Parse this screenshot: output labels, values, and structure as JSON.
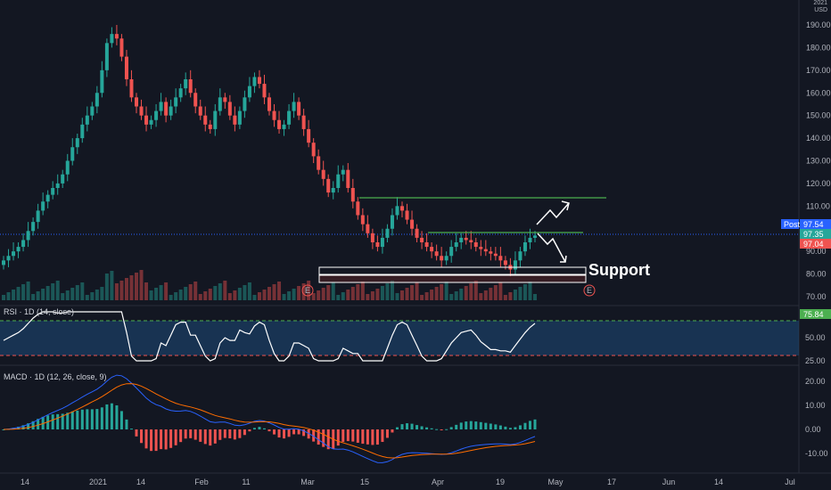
{
  "currency": {
    "line1": "2021",
    "line2": "USD"
  },
  "price_axis": {
    "ticks": [
      "190.00",
      "180.00",
      "170.00",
      "160.00",
      "150.00",
      "140.00",
      "130.00",
      "120.00",
      "110.00",
      "100.00",
      "90.00",
      "80.00",
      "70.00"
    ]
  },
  "price_tags": {
    "post_label": "Post",
    "post_value": "97.54",
    "last_value": "97.35",
    "prev_value": "97.04",
    "post_color": "#2962ff",
    "last_color": "#26a69a",
    "prev_color": "#ef5350"
  },
  "annotation": {
    "support": "Support",
    "earnings_marker": "E"
  },
  "rsi": {
    "legend": "RSI · 1D (14, close)",
    "value": "75.84",
    "ticks": [
      "50.00",
      "25.00"
    ]
  },
  "macd": {
    "legend": "MACD · 1D (12, 26, close, 9)",
    "ticks": [
      "20.00",
      "10.00",
      "0.00",
      "-10.00"
    ]
  },
  "time_axis": {
    "labels": [
      "14",
      "2021",
      "14",
      "Feb",
      "11",
      "Mar",
      "15",
      "Apr",
      "19",
      "May",
      "17",
      "Jun",
      "14",
      "Jul"
    ]
  },
  "colors": {
    "background": "#131722",
    "up": "#26a69a",
    "down": "#ef5350",
    "rsi_band": "#1e4a7a",
    "resistance": "#4caf50"
  },
  "chart_data": {
    "type": "candlestick",
    "price_range": [
      66,
      196
    ],
    "closes": [
      86,
      88,
      90,
      92,
      95,
      99,
      103,
      108,
      112,
      115,
      118,
      120,
      124,
      130,
      136,
      140,
      146,
      150,
      154,
      160,
      170,
      182,
      186,
      184,
      176,
      166,
      158,
      154,
      150,
      146,
      148,
      152,
      156,
      150,
      154,
      158,
      162,
      166,
      160,
      154,
      150,
      146,
      144,
      152,
      158,
      156,
      150,
      146,
      152,
      158,
      163,
      167,
      164,
      158,
      152,
      148,
      144,
      146,
      152,
      156,
      150,
      144,
      138,
      132,
      126,
      122,
      116,
      118,
      124,
      126,
      118,
      112,
      106,
      102,
      98,
      94,
      92,
      96,
      100,
      106,
      110,
      108,
      104,
      100,
      96,
      94,
      92,
      90,
      88,
      86,
      88,
      92,
      94,
      96,
      95,
      94,
      92,
      91,
      90,
      89,
      88,
      86,
      84,
      82,
      86,
      90,
      94,
      96,
      97
    ],
    "resistance_levels": [
      113,
      97.5
    ],
    "support_zone": [
      78,
      84
    ],
    "last_price": 97.54
  }
}
